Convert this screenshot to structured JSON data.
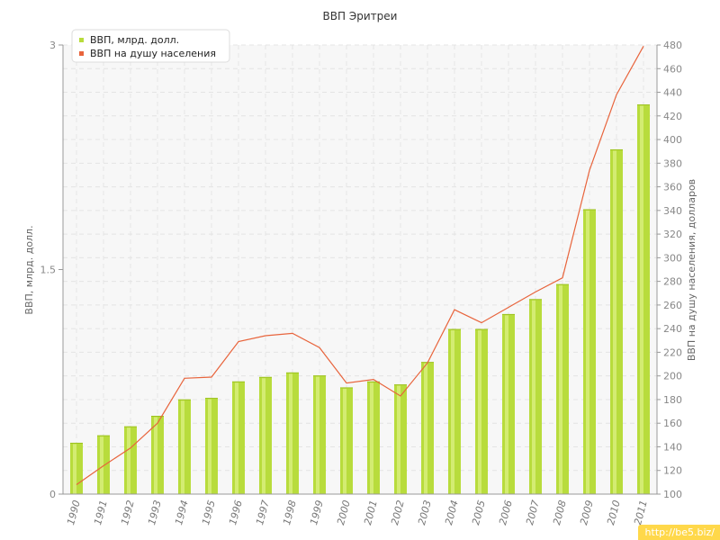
{
  "chart_data": {
    "type": "bar",
    "title": "ВВП Эритреи",
    "categories": [
      "1990",
      "1991",
      "1992",
      "1993",
      "1994",
      "1995",
      "1996",
      "1997",
      "1998",
      "1999",
      "2000",
      "2001",
      "2002",
      "2003",
      "2004",
      "2005",
      "2006",
      "2007",
      "2008",
      "2009",
      "2010",
      "2011"
    ],
    "series": [
      {
        "name": "ВВП, млрд. долл.",
        "type": "bar",
        "axis": "left",
        "color": "#b8dc3c",
        "values": [
          0.34,
          0.39,
          0.45,
          0.52,
          0.63,
          0.64,
          0.75,
          0.78,
          0.81,
          0.79,
          0.71,
          0.75,
          0.73,
          0.88,
          1.1,
          1.1,
          1.2,
          1.3,
          1.4,
          1.9,
          2.3,
          2.6
        ]
      },
      {
        "name": "ВВП на душу населения",
        "type": "line",
        "axis": "right",
        "color": "#e8643c",
        "values": [
          108,
          124,
          139,
          160,
          198,
          199,
          229,
          234,
          236,
          224,
          194,
          197,
          183,
          211,
          256,
          245,
          258,
          271,
          283,
          374,
          438,
          479
        ]
      }
    ],
    "ylabel": "ВВП, млрд. долл.",
    "ylabel_right": "ВВП на душу населения, долларов",
    "xlabel": "",
    "ylim": [
      0,
      3
    ],
    "yticks": [
      0,
      1.5,
      3
    ],
    "ylim_right": [
      100,
      480
    ],
    "yticks_right": [
      100,
      120,
      140,
      160,
      180,
      200,
      220,
      240,
      260,
      280,
      300,
      320,
      340,
      360,
      380,
      400,
      420,
      440,
      460,
      480
    ],
    "grid": true,
    "legend_position": "top-left"
  },
  "watermark": "http://be5.biz/"
}
